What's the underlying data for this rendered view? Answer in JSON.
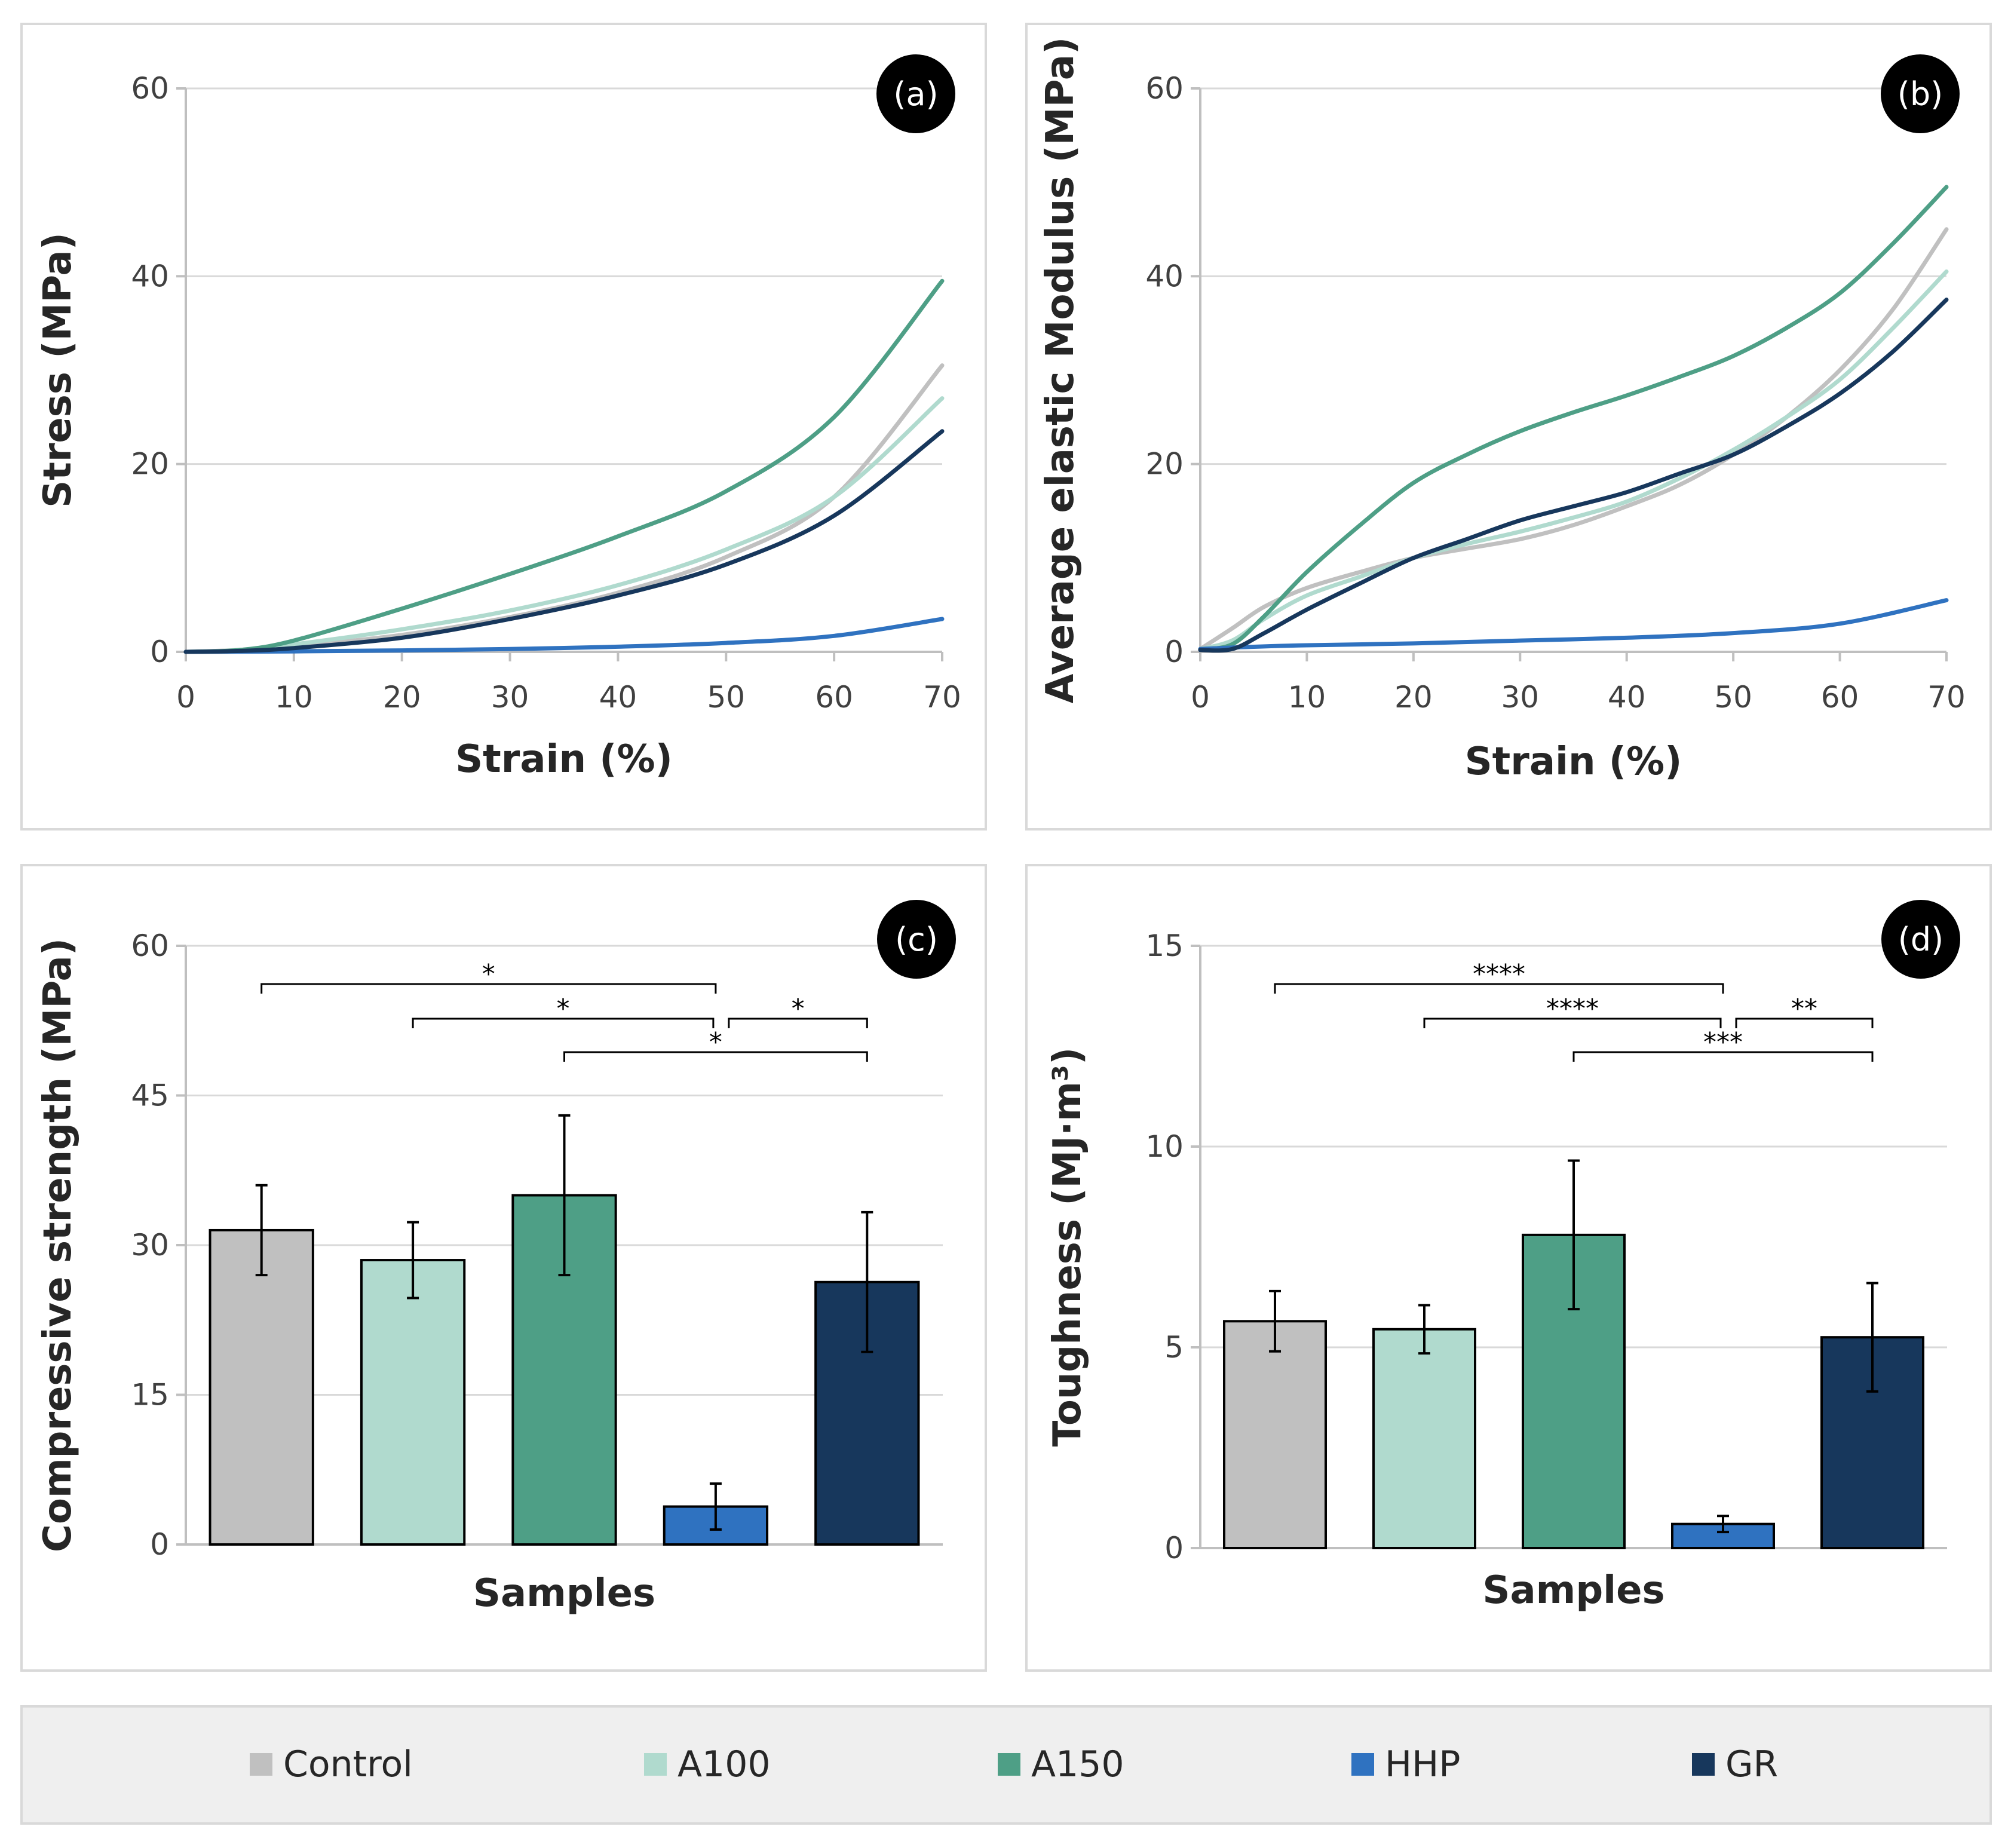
{
  "colors": {
    "Control": "#c0c0c0",
    "A100": "#b0dace",
    "A150": "#4e9f86",
    "HHP": "#2f72c0",
    "GR": "#17375c"
  },
  "legend": [
    "Control",
    "A100",
    "A150",
    "HHP",
    "GR"
  ],
  "chart_data": [
    {
      "id": "a",
      "badge": "(a)",
      "type": "line",
      "xlabel": "Strain (%)",
      "ylabel": "Stress (MPa)",
      "xlim": [
        0,
        70
      ],
      "ylim": [
        0,
        60
      ],
      "xticks": [
        0,
        10,
        20,
        30,
        40,
        50,
        60,
        70
      ],
      "yticks": [
        0,
        20,
        40,
        60
      ],
      "series": [
        {
          "name": "Control",
          "x": [
            0,
            5,
            10,
            20,
            30,
            40,
            50,
            60,
            70
          ],
          "y": [
            0,
            0.2,
            0.6,
            1.8,
            3.7,
            6.3,
            10.1,
            16.5,
            30.5
          ]
        },
        {
          "name": "A100",
          "x": [
            0,
            5,
            10,
            20,
            30,
            40,
            50,
            60,
            70
          ],
          "y": [
            0,
            0.2,
            0.8,
            2.4,
            4.4,
            7.1,
            10.9,
            16.5,
            27.0
          ]
        },
        {
          "name": "A150",
          "x": [
            0,
            5,
            10,
            20,
            30,
            40,
            50,
            60,
            70
          ],
          "y": [
            0,
            0.2,
            1.2,
            4.6,
            8.3,
            12.3,
            17.1,
            25.0,
            39.5
          ]
        },
        {
          "name": "HHP",
          "x": [
            0,
            10,
            20,
            30,
            40,
            50,
            60,
            70
          ],
          "y": [
            0,
            0.05,
            0.15,
            0.3,
            0.55,
            0.95,
            1.7,
            3.5
          ]
        },
        {
          "name": "GR",
          "x": [
            0,
            5,
            10,
            20,
            30,
            40,
            50,
            60,
            70
          ],
          "y": [
            0,
            0.1,
            0.4,
            1.5,
            3.5,
            6.0,
            9.3,
            14.5,
            23.5
          ]
        }
      ]
    },
    {
      "id": "b",
      "badge": "(b)",
      "type": "line",
      "xlabel": "Strain (%)",
      "ylabel": "Average elastic Modulus (MPa)",
      "xlim": [
        0,
        70
      ],
      "ylim": [
        0,
        60
      ],
      "xticks": [
        0,
        10,
        20,
        30,
        40,
        50,
        60,
        70
      ],
      "yticks": [
        0,
        20,
        40,
        60
      ],
      "series": [
        {
          "name": "Control",
          "x": [
            0,
            3,
            6,
            10,
            15,
            20,
            25,
            30,
            35,
            40,
            45,
            50,
            55,
            60,
            65,
            70
          ],
          "y": [
            0.3,
            2.5,
            4.8,
            6.8,
            8.5,
            10.0,
            11.0,
            12.0,
            13.5,
            15.5,
            17.8,
            21.0,
            25.0,
            30.0,
            36.5,
            45.0
          ]
        },
        {
          "name": "A100",
          "x": [
            0,
            3,
            6,
            10,
            15,
            20,
            25,
            30,
            35,
            40,
            45,
            50,
            55,
            60,
            65,
            70
          ],
          "y": [
            0.3,
            1.2,
            3.5,
            6.0,
            8.0,
            10.0,
            11.5,
            12.8,
            14.3,
            16.0,
            18.5,
            21.5,
            25.0,
            29.0,
            34.5,
            40.5
          ]
        },
        {
          "name": "A150",
          "x": [
            0,
            3,
            6,
            10,
            15,
            20,
            25,
            30,
            35,
            40,
            45,
            50,
            55,
            60,
            65,
            70
          ],
          "y": [
            0.3,
            0.8,
            3.8,
            8.5,
            13.5,
            18.0,
            21.0,
            23.5,
            25.5,
            27.3,
            29.3,
            31.5,
            34.5,
            38.2,
            43.5,
            49.5
          ]
        },
        {
          "name": "HHP",
          "x": [
            0,
            4,
            10,
            20,
            30,
            40,
            50,
            60,
            70
          ],
          "y": [
            0.3,
            0.5,
            0.7,
            0.9,
            1.2,
            1.5,
            2.0,
            3.0,
            5.5
          ]
        },
        {
          "name": "GR",
          "x": [
            0,
            3,
            6,
            10,
            15,
            20,
            25,
            30,
            35,
            40,
            45,
            50,
            55,
            60,
            65,
            70
          ],
          "y": [
            0.2,
            0.3,
            2.0,
            4.5,
            7.3,
            10.0,
            12.0,
            14.0,
            15.5,
            17.0,
            19.0,
            21.0,
            24.0,
            27.5,
            32.0,
            37.5
          ]
        }
      ]
    },
    {
      "id": "c",
      "badge": "(c)",
      "type": "bar",
      "xlabel": "Samples",
      "ylabel": "Compressive strength (MPa)",
      "ylim": [
        0,
        60
      ],
      "yticks": [
        0,
        15,
        30,
        45,
        60
      ],
      "categories": [
        "Control",
        "A100",
        "A150",
        "HHP",
        "GR"
      ],
      "values": [
        31.5,
        28.5,
        35.0,
        3.8,
        26.3
      ],
      "errors": [
        4.5,
        3.8,
        8.0,
        2.3,
        7.0
      ],
      "significance": [
        {
          "from": 0,
          "to": 3,
          "label": "*",
          "level": 1
        },
        {
          "from": 1,
          "to": 3,
          "label": "*",
          "level": 2
        },
        {
          "from": 3,
          "to": 4,
          "label": "*",
          "level": 2
        },
        {
          "from": 2,
          "to": 4,
          "label": "*",
          "level": 3
        }
      ]
    },
    {
      "id": "d",
      "badge": "(d)",
      "type": "bar",
      "xlabel": "Samples",
      "ylabel": "Toughness (MJ·m³)",
      "ylim": [
        0,
        15
      ],
      "yticks": [
        0,
        5,
        10,
        15
      ],
      "categories": [
        "Control",
        "A100",
        "A150",
        "HHP",
        "GR"
      ],
      "values": [
        5.65,
        5.45,
        7.8,
        0.6,
        5.25
      ],
      "errors": [
        0.75,
        0.6,
        1.85,
        0.2,
        1.35
      ],
      "significance": [
        {
          "from": 0,
          "to": 3,
          "label": "****",
          "level": 1
        },
        {
          "from": 1,
          "to": 3,
          "label": "****",
          "level": 2
        },
        {
          "from": 3,
          "to": 4,
          "label": "**",
          "level": 2
        },
        {
          "from": 2,
          "to": 4,
          "label": "***",
          "level": 3
        }
      ]
    }
  ]
}
